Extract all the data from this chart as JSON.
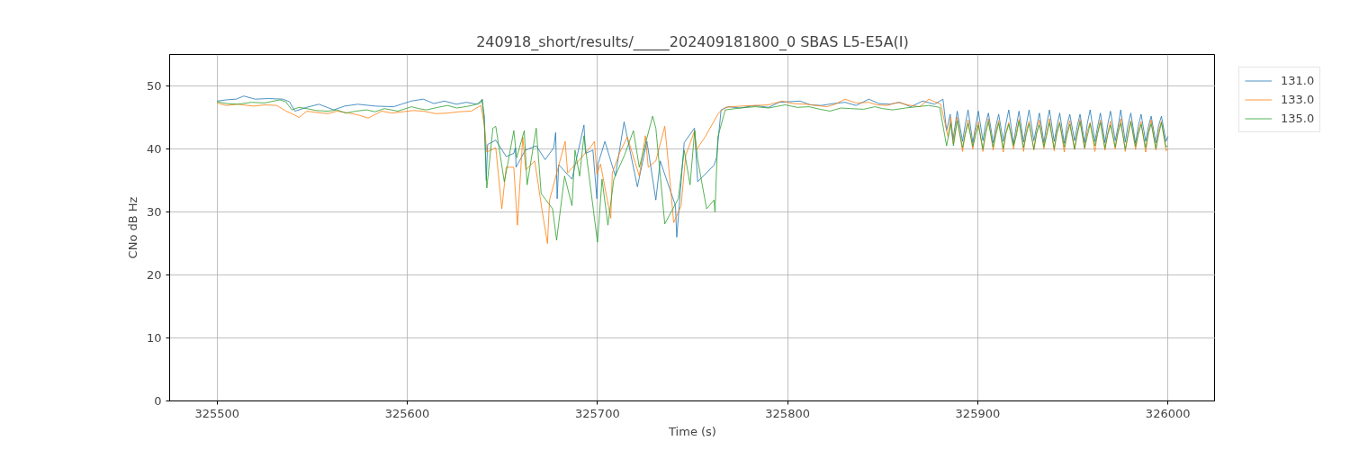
{
  "chart_data": {
    "type": "line",
    "title": "240918_short/results/_____202409181800_0 SBAS L5-E5A(I)",
    "xlabel": "Time (s)",
    "ylabel": "CNo dB Hz",
    "xlim": [
      325475,
      326025
    ],
    "ylim": [
      0,
      55
    ],
    "xticks": [
      325500,
      325600,
      325700,
      325800,
      325900,
      326000
    ],
    "yticks": [
      0,
      10,
      20,
      30,
      40,
      50
    ],
    "grid": true,
    "legend": "top right",
    "series": [
      {
        "name": "131.0",
        "color": "#1f77b4",
        "x": [
          325500,
          325505,
          325510,
          325514,
          325520,
          325527,
          325534.6,
          325538,
          325540.9,
          325547,
          325553.5,
          325561.3,
          325567,
          325573.9,
          325583.3,
          325592.8,
          325602,
          325608.5,
          325614,
          325619.5,
          325625.8,
          325631,
          325636.8,
          325639.2,
          325640.5,
          325641.5,
          325642.2,
          325646.5,
          325652,
          325656,
          325656.8,
          325657.2,
          325662,
          325667.8,
          325672.5,
          325677,
          325678,
          325678.8,
          325679.6,
          325686.6,
          325692.9,
          325693.7,
          325697.6,
          325699.7,
          325700.3,
          325703.9,
          325709.4,
          325714,
          325721,
          325726,
          325730.7,
          325733,
          325741,
          325741.7,
          325745.6,
          325751,
          325752.7,
          325761.3,
          325762.6,
          325765,
          325768.8,
          325775,
          325783,
          325790,
          325795.6,
          325806.6,
          325812,
          325817.6,
          325824,
          325830.2,
          325836,
          325842.7,
          325848,
          325853.7,
          325859,
          325864.7,
          325871,
          325877.3,
          325881.7,
          325883.6,
          325885.5,
          325887.0,
          325889.2,
          325892.0,
          325893.4,
          325894.9,
          325897.4,
          325898.8,
          325900.3,
          325902.7,
          325904.1,
          325905.6,
          325908.1,
          325909.5,
          325911.0,
          325913.4,
          325914.8,
          325916.3,
          325918.8,
          325920.2,
          325921.7,
          325924.1,
          325925.5,
          325927.0,
          325929.5,
          325930.9,
          325932.4,
          325934.8,
          325936.2,
          325937.7,
          325940.2,
          325941.6,
          325943.1,
          325945.5,
          325946.9,
          325948.4,
          325950.9,
          325952.3,
          325953.8,
          325956.2,
          325957.6,
          325959.1,
          325961.6,
          325963.0,
          325964.5,
          325966.9,
          325968.3,
          325969.8,
          325972.3,
          325973.7,
          325975.2,
          325977.6,
          325979.0,
          325980.5,
          325983.0,
          325984.4,
          325985.9,
          325988.3,
          325989.7,
          325991.2,
          325993.7,
          325995.1,
          325996.6,
          325999.0,
          326000
        ],
        "values": [
          47.6,
          47.8,
          47.9,
          48.4,
          47.9,
          48.0,
          47.9,
          47.5,
          46.0,
          46.6,
          47.1,
          46.2,
          46.8,
          47.1,
          46.8,
          46.7,
          47.6,
          47.9,
          47.2,
          47.6,
          47.1,
          47.4,
          47.1,
          47.8,
          45.2,
          35.0,
          40.7,
          41.4,
          38.8,
          39.3,
          40.2,
          37.1,
          39.8,
          40.5,
          38.3,
          40.2,
          42.6,
          32.1,
          37.5,
          35.2,
          43.8,
          39.3,
          39.8,
          32.1,
          37.6,
          41.2,
          35.7,
          44.3,
          34.0,
          41.2,
          31.9,
          38.1,
          31.0,
          26.0,
          41.0,
          43.3,
          34.8,
          37.4,
          38.6,
          46.2,
          46.7,
          46.5,
          46.9,
          46.6,
          47.4,
          47.6,
          47.0,
          46.9,
          47.2,
          47.4,
          46.9,
          47.9,
          47.2,
          47.1,
          47.4,
          46.7,
          47.6,
          47.1,
          47.9,
          42.9,
          45.5,
          41.5,
          46.0,
          41.2,
          43.8,
          46.2,
          41.0,
          43.5,
          46.0,
          41.3,
          43.9,
          45.7,
          41.0,
          43.6,
          45.5,
          41.2,
          44.0,
          46.2,
          40.8,
          43.5,
          46.0,
          41.1,
          43.8,
          46.2,
          41.3,
          43.4,
          45.7,
          41.0,
          43.9,
          46.2,
          41.2,
          43.5,
          45.7,
          40.9,
          43.7,
          45.5,
          41.3,
          43.6,
          45.5,
          41.0,
          44.0,
          46.2,
          41.2,
          43.5,
          45.7,
          41.0,
          43.8,
          46.0,
          41.3,
          43.4,
          46.2,
          41.1,
          43.8,
          45.7,
          40.9,
          43.6,
          45.5,
          41.2,
          43.5,
          45.2,
          41.0,
          43.7,
          45.2,
          41.2,
          42.0
        ]
      },
      {
        "name": "133.0",
        "color": "#ff7f0e",
        "x": [
          325500,
          325504.7,
          325511,
          325518.9,
          325525,
          325531.4,
          325536.2,
          325540,
          325543,
          325547.2,
          325552,
          325558.2,
          325563,
          325569.2,
          325574,
          325579.4,
          325586.5,
          325592,
          325597.5,
          325603,
          325608.5,
          325615,
          325621.1,
          325627,
          325633.6,
          325638.7,
          325640.5,
          325641.8,
          325646.5,
          325649.7,
          325652,
          325656,
          325657.9,
          325660.7,
          325662.3,
          325667,
          325671,
          325673.7,
          325674.8,
          325683,
          325684.3,
          325692.1,
          325696.9,
          325698.4,
          325699.7,
          325701.6,
          325707,
          325707.8,
          325711.8,
          325715.7,
          325722,
          325725.2,
          325726.7,
          325730.7,
          325735.4,
          325737,
          325740.1,
          325744,
          325746.4,
          325751.1,
          325751.9,
          325756.6,
          325763.7,
          325767.2,
          325775,
          325783,
          325790,
          325797.1,
          325803,
          325809.7,
          325815,
          325820.7,
          325825,
          325830.2,
          325836,
          325842.7,
          325847,
          325852.2,
          325858,
          325863,
          325869.5,
          325874.2,
          325880.5,
          325884.4,
          325885.8,
          325887.2,
          325889.2,
          325892.0,
          325893.4,
          325894.9,
          325897.4,
          325898.8,
          325900.3,
          325902.7,
          325904.1,
          325905.6,
          325908.1,
          325909.5,
          325911.0,
          325913.4,
          325914.8,
          325916.3,
          325918.8,
          325920.2,
          325921.7,
          325924.1,
          325925.5,
          325927.0,
          325929.5,
          325930.9,
          325932.4,
          325934.8,
          325936.2,
          325937.7,
          325940.2,
          325941.6,
          325943.1,
          325945.5,
          325946.9,
          325948.4,
          325950.9,
          325952.3,
          325953.8,
          325956.2,
          325957.6,
          325959.1,
          325961.6,
          325963.0,
          325964.5,
          325966.9,
          325968.3,
          325969.8,
          325972.3,
          325973.7,
          325975.2,
          325977.6,
          325979.0,
          325980.5,
          325983.0,
          325984.4,
          325985.9,
          325988.3,
          325989.7,
          325991.2,
          325993.7,
          325995.1,
          325996.6,
          325999.0,
          326000
        ],
        "values": [
          47.3,
          46.9,
          47.1,
          46.8,
          47.0,
          46.9,
          46.0,
          45.5,
          45.0,
          46.0,
          45.8,
          45.6,
          46.0,
          45.7,
          45.4,
          44.9,
          46.0,
          45.7,
          45.9,
          46.1,
          46.0,
          45.6,
          45.7,
          45.9,
          46.0,
          46.9,
          43.8,
          39.5,
          40.2,
          30.5,
          37.1,
          37.1,
          27.9,
          41.9,
          36.7,
          38.1,
          30.0,
          25.0,
          31.9,
          41.2,
          36.2,
          38.8,
          40.5,
          41.2,
          36.0,
          37.6,
          29.0,
          36.2,
          39.5,
          41.9,
          35.7,
          42.1,
          37.1,
          38.1,
          43.6,
          38.6,
          28.3,
          31.0,
          39.0,
          42.9,
          39.8,
          41.9,
          45.7,
          46.6,
          46.8,
          46.9,
          47.0,
          47.6,
          47.2,
          47.1,
          46.9,
          46.7,
          47.1,
          47.9,
          47.3,
          47.4,
          47.0,
          46.9,
          47.4,
          47.0,
          46.7,
          47.9,
          47.1,
          41.9,
          45.0,
          40.8,
          45.0,
          39.6,
          42.5,
          44.6,
          40.0,
          42.8,
          44.3,
          39.6,
          42.4,
          44.8,
          39.8,
          42.7,
          44.5,
          39.5,
          42.6,
          44.2,
          40.0,
          42.5,
          44.7,
          39.6,
          42.8,
          44.4,
          39.8,
          42.4,
          44.6,
          40.0,
          42.6,
          44.8,
          39.7,
          42.7,
          44.3,
          39.5,
          42.5,
          44.5,
          39.9,
          42.4,
          44.7,
          40.0,
          42.8,
          44.2,
          39.6,
          42.6,
          44.6,
          39.8,
          42.5,
          44.4,
          40.0,
          42.7,
          44.8,
          39.6,
          42.4,
          44.5,
          39.9,
          42.6,
          44.3,
          39.5,
          42.5,
          44.6,
          39.8,
          42.8,
          44.4,
          39.7,
          40.0
        ]
      },
      {
        "name": "135.0",
        "color": "#2ca02c",
        "x": [
          325500,
          325505,
          325511,
          325518,
          325525,
          325533,
          325536,
          325539.3,
          325543,
          325547.2,
          325552,
          325558.2,
          325563,
          325567.6,
          325573,
          325578.6,
          325583,
          325588,
          325595,
          325602.2,
          325606,
          325610,
          325616,
          325621.1,
          325626,
          325630.5,
          325634,
          325638.4,
          325639.5,
          325640.5,
          325641.8,
          325645,
          325646.5,
          325651,
          325652.8,
          325656,
          325657.5,
          325661.5,
          325663,
          325667.8,
          325670.4,
          325676.4,
          325678.5,
          325682.7,
          325686.6,
          325688.2,
          325690.6,
          325692.9,
          325700,
          325702.4,
          325705.5,
          325708.6,
          325714.2,
          325718.9,
          325722,
          325729,
          325730.7,
          325735.4,
          325742.5,
          325745.6,
          325748.7,
          325751.1,
          325752.7,
          325757.4,
          325761.3,
          325761.8,
          325763.3,
          325767.2,
          325775,
          325783,
          325790,
          325798.7,
          325805,
          325811.3,
          325817,
          325822.3,
          325828,
          325833.3,
          325840,
          325845.9,
          325850,
          325855.3,
          325862,
          325868,
          325874.2,
          325880,
          325883.6,
          325885.8,
          325887.2,
          325889.2,
          325892.0,
          325893.4,
          325894.9,
          325897.4,
          325898.8,
          325900.3,
          325902.7,
          325904.1,
          325905.6,
          325908.1,
          325909.5,
          325911.0,
          325913.4,
          325914.8,
          325916.3,
          325918.8,
          325920.2,
          325921.7,
          325924.1,
          325925.5,
          325927.0,
          325929.5,
          325930.9,
          325932.4,
          325934.8,
          325936.2,
          325937.7,
          325940.2,
          325941.6,
          325943.1,
          325945.5,
          325946.9,
          325948.4,
          325950.9,
          325952.3,
          325953.8,
          325956.2,
          325957.6,
          325959.1,
          325961.6,
          325963.0,
          325964.5,
          325966.9,
          325968.3,
          325969.8,
          325972.3,
          325973.7,
          325975.2,
          325977.6,
          325979.0,
          325980.5,
          325983.0,
          325984.4,
          325985.9,
          325988.3,
          325989.7,
          325991.2,
          325993.7,
          325995.1,
          325996.6,
          325999.0,
          326000
        ],
        "values": [
          47.5,
          47.2,
          47.1,
          47.4,
          47.3,
          47.8,
          47.5,
          46.2,
          46.6,
          46.4,
          46.1,
          46.0,
          46.2,
          45.7,
          46.0,
          46.2,
          45.9,
          46.4,
          46.0,
          46.7,
          46.4,
          46.2,
          46.6,
          46.9,
          46.5,
          46.7,
          46.9,
          47.3,
          47.9,
          43.8,
          33.8,
          43.3,
          43.6,
          34.8,
          37.6,
          42.9,
          38.6,
          42.9,
          34.3,
          43.3,
          32.9,
          30.5,
          25.5,
          35.7,
          31.0,
          39.8,
          35.7,
          42.1,
          25.2,
          35.2,
          27.9,
          35.2,
          39.0,
          42.9,
          37.1,
          45.2,
          43.3,
          28.1,
          32.1,
          39.8,
          34.3,
          42.9,
          38.3,
          30.5,
          31.9,
          30.0,
          41.9,
          46.2,
          46.5,
          46.7,
          46.5,
          47.0,
          46.6,
          46.7,
          46.3,
          46.0,
          46.5,
          46.4,
          46.3,
          46.7,
          46.4,
          46.2,
          46.5,
          46.7,
          46.9,
          46.6,
          40.5,
          44.0,
          40.5,
          44.5,
          40.2,
          42.3,
          44.0,
          40.4,
          42.1,
          43.8,
          40.0,
          42.5,
          44.3,
          40.3,
          42.2,
          44.1,
          40.1,
          42.4,
          43.9,
          40.5,
          42.0,
          44.4,
          40.2,
          42.3,
          44.0,
          40.0,
          42.5,
          43.8,
          40.4,
          42.1,
          44.2,
          40.1,
          42.4,
          44.1,
          40.3,
          42.2,
          43.9,
          40.0,
          42.3,
          44.3,
          40.2,
          42.0,
          44.0,
          40.5,
          42.4,
          44.2,
          40.1,
          42.2,
          43.8,
          40.3,
          42.5,
          44.1,
          40.0,
          42.1,
          44.3,
          40.4,
          42.3,
          43.9,
          40.2,
          42.4,
          44.0,
          40.1,
          42.2,
          44.2,
          40.3,
          40.5
        ]
      }
    ]
  }
}
